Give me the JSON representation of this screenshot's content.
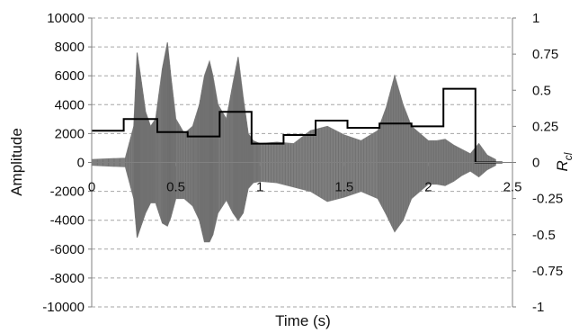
{
  "chart_data": {
    "type": "line",
    "title": "",
    "xlabel": "Time (s)",
    "ylabel": "Amplitude",
    "y2label_main": "R",
    "y2label_sub": "cl",
    "xlim": [
      0,
      2.5
    ],
    "ylim": [
      -10000,
      10000
    ],
    "y2lim": [
      -1,
      1
    ],
    "grid": "horizontal dashed",
    "legend": "none",
    "x_ticks": [
      "0",
      "0.5",
      "1",
      "1.5",
      "2",
      "2.5"
    ],
    "y_ticks": [
      "10000",
      "8000",
      "6000",
      "4000",
      "2000",
      "0",
      "-2000",
      "-4000",
      "-6000",
      "-8000",
      "-10000"
    ],
    "y2_ticks": [
      "1",
      "0.75",
      "0.5",
      "0.25",
      "0",
      "-0.25",
      "-0.5",
      "-0.75",
      "-1"
    ],
    "colors": {
      "waveform": "#7f7f7f",
      "step": "#000000",
      "grid": "#a6a6a6"
    },
    "series": [
      {
        "kind": "waveform-envelope",
        "axis": "left",
        "x": [
          0.0,
          0.2,
          0.25,
          0.27,
          0.29,
          0.32,
          0.35,
          0.38,
          0.42,
          0.45,
          0.47,
          0.5,
          0.55,
          0.6,
          0.64,
          0.67,
          0.7,
          0.72,
          0.75,
          0.8,
          0.84,
          0.87,
          0.9,
          0.93,
          0.96,
          1.0,
          1.1,
          1.2,
          1.3,
          1.4,
          1.5,
          1.6,
          1.7,
          1.75,
          1.8,
          1.85,
          1.9,
          1.95,
          2.0,
          2.05,
          2.1,
          2.15,
          2.2,
          2.25,
          2.3,
          2.35,
          2.4
        ],
        "upper": [
          200,
          300,
          2500,
          7600,
          6000,
          3500,
          2500,
          3000,
          6500,
          8300,
          6000,
          3000,
          2000,
          2500,
          4000,
          6000,
          7000,
          6000,
          4000,
          3000,
          5500,
          7300,
          4500,
          2000,
          1500,
          1300,
          1400,
          1300,
          2200,
          2500,
          1900,
          1500,
          2200,
          3800,
          6000,
          4000,
          2500,
          2000,
          1500,
          1500,
          1600,
          1200,
          900,
          600,
          1300,
          500,
          200
        ],
        "lower": [
          -200,
          -300,
          -2500,
          -5200,
          -4500,
          -3500,
          -2800,
          -2800,
          -4200,
          -4400,
          -3800,
          -2500,
          -2500,
          -3000,
          -4000,
          -5500,
          -5500,
          -5000,
          -3500,
          -2600,
          -3500,
          -4000,
          -3500,
          -1800,
          -1400,
          -1300,
          -1400,
          -1700,
          -2000,
          -2700,
          -2400,
          -2000,
          -2500,
          -3600,
          -4800,
          -4000,
          -2500,
          -2000,
          -1500,
          -1500,
          -1600,
          -1300,
          -900,
          -600,
          -1000,
          -500,
          -200
        ]
      },
      {
        "kind": "step",
        "axis": "right",
        "x": [
          0.0,
          0.19,
          0.19,
          0.39,
          0.39,
          0.57,
          0.57,
          0.76,
          0.76,
          0.95,
          0.95,
          1.14,
          1.14,
          1.33,
          1.33,
          1.52,
          1.52,
          1.71,
          1.71,
          1.9,
          1.9,
          2.09,
          2.09,
          2.28,
          2.28,
          2.44
        ],
        "y": [
          0.22,
          0.22,
          0.3,
          0.3,
          0.21,
          0.21,
          0.18,
          0.18,
          0.35,
          0.35,
          0.13,
          0.13,
          0.19,
          0.19,
          0.29,
          0.29,
          0.24,
          0.24,
          0.27,
          0.27,
          0.25,
          0.25,
          0.51,
          0.51,
          0.0,
          0.0
        ]
      }
    ]
  }
}
